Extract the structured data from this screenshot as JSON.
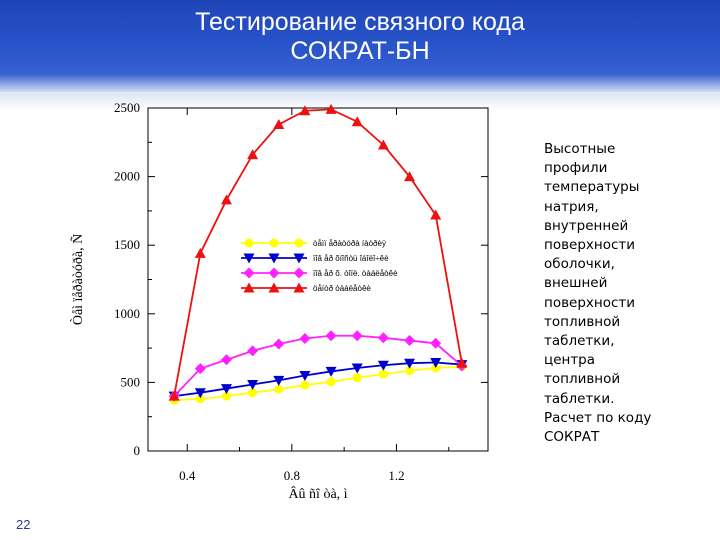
{
  "slide": {
    "title_line1": "Тестирование связного кода",
    "title_line2": "СОКРАТ-БН",
    "caption": "Высотные\nпрофили\nтемпературы\nнатрия,\nвнутренней\nповерхности\nоболочки,\nвнешней\nповерхности\nтопливной\nтаблетки,\nцентра\nтопливной\nтаблетки.\nРасчет по коду\nСОКРАТ",
    "slide_number": "22"
  },
  "colors": {
    "header": "#2a56cc",
    "title_text": "#ffffff",
    "series": [
      "#ffff00",
      "#0000cc",
      "#ff22ff",
      "#ee1111"
    ]
  },
  "chart_data": {
    "type": "line",
    "xlabel": "Âû ñî òà, ì",
    "ylabel": "Òåì ïåðàòóðà, Ñ",
    "xlim": [
      0.25,
      1.55
    ],
    "ylim": [
      0,
      2500
    ],
    "x_ticks": [
      0.4,
      0.8,
      1.2
    ],
    "x_tick_labels": [
      "0.4",
      "0.8",
      "1.2"
    ],
    "y_ticks": [
      0,
      500,
      1000,
      1500,
      2000,
      2500
    ],
    "y_tick_labels": [
      "0",
      "500",
      "1000",
      "1500",
      "2000",
      "2500"
    ],
    "grid": false,
    "legend_position": "center-left",
    "x": [
      0.35,
      0.45,
      0.55,
      0.65,
      0.75,
      0.85,
      0.95,
      1.05,
      1.15,
      1.25,
      1.35,
      1.45
    ],
    "series": [
      {
        "name": "òåìï åðàòóðà íàòðèÿ",
        "color": "#ffff00",
        "marker": "circle",
        "values": [
          370,
          380,
          400,
          425,
          450,
          480,
          505,
          535,
          560,
          585,
          605,
          615
        ]
      },
      {
        "name": "ïîâ åð õíîñòü îáîëî÷êè",
        "color": "#0000cc",
        "marker": "triangle-down",
        "values": [
          400,
          425,
          455,
          485,
          515,
          550,
          580,
          605,
          625,
          640,
          645,
          630
        ]
      },
      {
        "name": "ïîâ åð õ. òîïë. òàáëåòêè",
        "color": "#ff22ff",
        "marker": "diamond",
        "values": [
          400,
          600,
          665,
          730,
          780,
          820,
          840,
          840,
          825,
          805,
          785,
          620
        ]
      },
      {
        "name": "öåíòð òàáëåòêè",
        "color": "#ee1111",
        "marker": "triangle-up",
        "values": [
          400,
          1440,
          1830,
          2160,
          2380,
          2480,
          2490,
          2400,
          2230,
          2000,
          1720,
          640
        ]
      }
    ]
  }
}
